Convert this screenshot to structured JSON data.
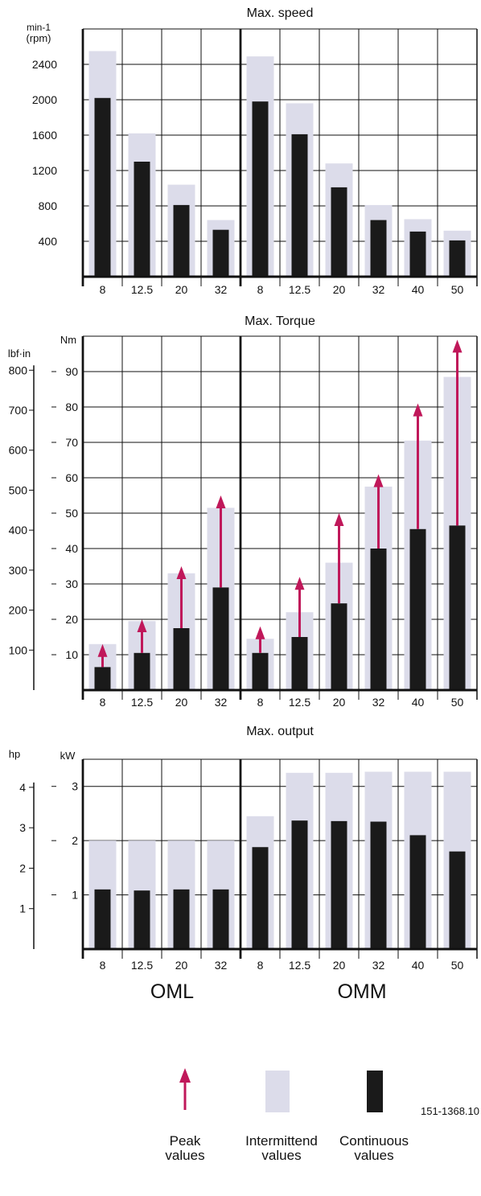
{
  "figure_id": "151-1368.10",
  "colors": {
    "intermittent": "#dcdcea",
    "continuous": "#1a1a1a",
    "peak": "#c0185a",
    "grid": "#111111"
  },
  "groups": {
    "oml": "OML",
    "omm": "OMM"
  },
  "legend": {
    "peak": [
      "Peak",
      "values"
    ],
    "intermittent": [
      "Intermittend",
      "values"
    ],
    "continuous": [
      "Continuous",
      "values"
    ]
  },
  "chart_data": [
    {
      "type": "bar",
      "title": "Max. speed",
      "ylabel": [
        "min-1",
        "(rpm)"
      ],
      "ylim": [
        0,
        2800
      ],
      "yticks": [
        400,
        800,
        1200,
        1600,
        2000,
        2400
      ],
      "groups": [
        "OML",
        "OMM"
      ],
      "categories_oml": [
        "8",
        "12.5",
        "20",
        "32"
      ],
      "categories_omm": [
        "8",
        "12.5",
        "20",
        "32",
        "40",
        "50"
      ],
      "series": [
        {
          "name": "Intermittend values",
          "oml": [
            2550,
            1620,
            1040,
            640
          ],
          "omm": [
            2490,
            1960,
            1280,
            810,
            650,
            520
          ]
        },
        {
          "name": "Continuous values",
          "oml": [
            2020,
            1300,
            810,
            530
          ],
          "omm": [
            1980,
            1610,
            1010,
            640,
            510,
            410
          ]
        }
      ]
    },
    {
      "type": "bar",
      "title": "Max. Torque",
      "ylabel": "Nm",
      "ylabel_secondary": "lbf·in",
      "ylim": [
        0,
        100
      ],
      "yticks": [
        10,
        20,
        30,
        40,
        50,
        60,
        70,
        80,
        90
      ],
      "yticks_secondary": [
        100,
        200,
        300,
        400,
        500,
        600,
        700,
        800
      ],
      "groups": [
        "OML",
        "OMM"
      ],
      "categories_oml": [
        "8",
        "12.5",
        "20",
        "32"
      ],
      "categories_omm": [
        "8",
        "12.5",
        "20",
        "32",
        "40",
        "50"
      ],
      "series": [
        {
          "name": "Intermittend values",
          "oml": [
            13,
            19.5,
            33,
            51.5
          ],
          "omm": [
            14.5,
            22,
            36,
            57.5,
            70.5,
            88.5
          ]
        },
        {
          "name": "Continuous values",
          "oml": [
            6.5,
            10.5,
            17.5,
            29
          ],
          "omm": [
            10.5,
            15,
            24.5,
            40,
            45.5,
            46.5
          ]
        },
        {
          "name": "Peak values",
          "oml": [
            13,
            20,
            35,
            55
          ],
          "omm": [
            18,
            32,
            50,
            61,
            81,
            99
          ]
        }
      ]
    },
    {
      "type": "bar",
      "title": "Max. output",
      "ylabel": "kW",
      "ylabel_secondary": "hp",
      "ylim": [
        0,
        3.5
      ],
      "yticks": [
        1,
        2,
        3
      ],
      "yticks_secondary": [
        1,
        2,
        3,
        4
      ],
      "groups": [
        "OML",
        "OMM"
      ],
      "categories_oml": [
        "8",
        "12.5",
        "20",
        "32"
      ],
      "categories_omm": [
        "8",
        "12.5",
        "20",
        "32",
        "40",
        "50"
      ],
      "series": [
        {
          "name": "Intermittend values",
          "oml": [
            2.0,
            2.0,
            2.0,
            2.0
          ],
          "omm": [
            2.45,
            3.25,
            3.25,
            3.27,
            3.27,
            3.27
          ]
        },
        {
          "name": "Continuous values",
          "oml": [
            1.1,
            1.08,
            1.1,
            1.1
          ],
          "omm": [
            1.88,
            2.37,
            2.36,
            2.35,
            2.1,
            1.8
          ]
        }
      ]
    }
  ]
}
